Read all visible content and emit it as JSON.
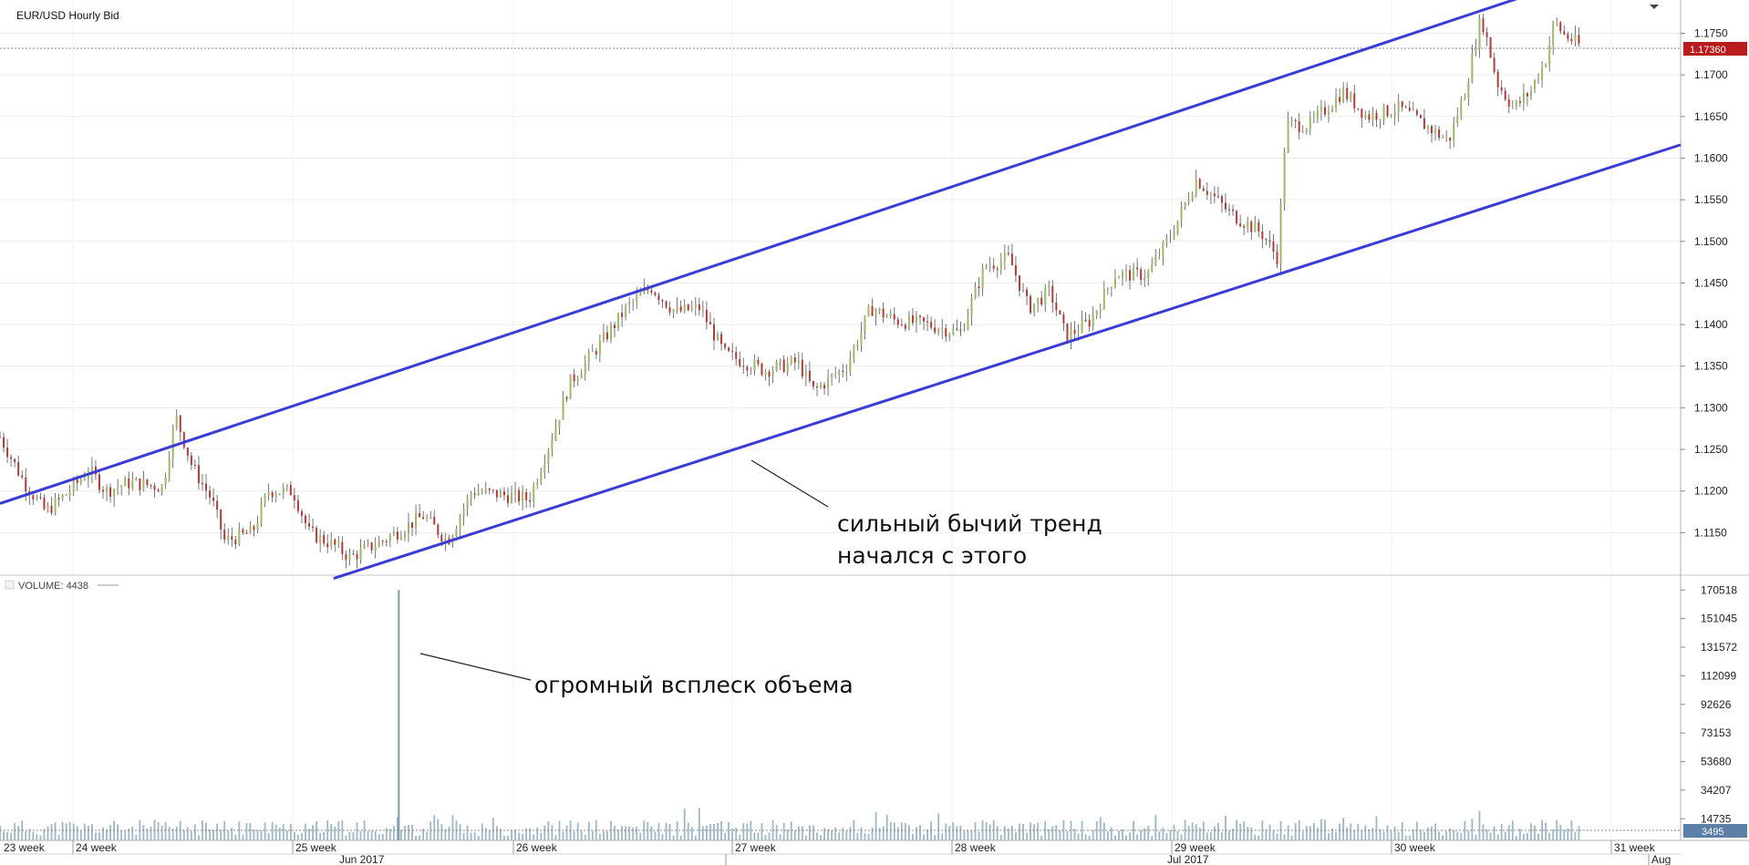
{
  "chart_data": [
    {
      "type": "candlestick",
      "title": "EUR/USD  Hourly Bid",
      "ylim": [
        1.11,
        1.179
      ],
      "y_ticks": [
        "1.1150",
        "1.1200",
        "1.1250",
        "1.1300",
        "1.1350",
        "1.1400",
        "1.1450",
        "1.1500",
        "1.1550",
        "1.1600",
        "1.1650",
        "1.1700",
        "1.1750"
      ],
      "last_price": "1.17360",
      "price_path": [
        {
          "t": 0,
          "p": 1.1265
        },
        {
          "t": 0.015,
          "p": 1.121
        },
        {
          "t": 0.028,
          "p": 1.1175
        },
        {
          "t": 0.04,
          "p": 1.1195
        },
        {
          "t": 0.055,
          "p": 1.1225
        },
        {
          "t": 0.065,
          "p": 1.12
        },
        {
          "t": 0.08,
          "p": 1.121
        },
        {
          "t": 0.1,
          "p": 1.1205
        },
        {
          "t": 0.108,
          "p": 1.129
        },
        {
          "t": 0.118,
          "p": 1.123
        },
        {
          "t": 0.13,
          "p": 1.119
        },
        {
          "t": 0.138,
          "p": 1.114
        },
        {
          "t": 0.155,
          "p": 1.115
        },
        {
          "t": 0.165,
          "p": 1.12
        },
        {
          "t": 0.18,
          "p": 1.12
        },
        {
          "t": 0.19,
          "p": 1.115
        },
        {
          "t": 0.205,
          "p": 1.1135
        },
        {
          "t": 0.215,
          "p": 1.112
        },
        {
          "t": 0.235,
          "p": 1.114
        },
        {
          "t": 0.26,
          "p": 1.117
        },
        {
          "t": 0.275,
          "p": 1.114
        },
        {
          "t": 0.29,
          "p": 1.12
        },
        {
          "t": 0.31,
          "p": 1.1195
        },
        {
          "t": 0.325,
          "p": 1.119
        },
        {
          "t": 0.34,
          "p": 1.127
        },
        {
          "t": 0.35,
          "p": 1.133
        },
        {
          "t": 0.37,
          "p": 1.138
        },
        {
          "t": 0.385,
          "p": 1.142
        },
        {
          "t": 0.4,
          "p": 1.1445
        },
        {
          "t": 0.415,
          "p": 1.1415
        },
        {
          "t": 0.43,
          "p": 1.142
        },
        {
          "t": 0.445,
          "p": 1.1365
        },
        {
          "t": 0.47,
          "p": 1.1345
        },
        {
          "t": 0.49,
          "p": 1.1355
        },
        {
          "t": 0.5,
          "p": 1.132
        },
        {
          "t": 0.52,
          "p": 1.135
        },
        {
          "t": 0.535,
          "p": 1.142
        },
        {
          "t": 0.55,
          "p": 1.1405
        },
        {
          "t": 0.57,
          "p": 1.14
        },
        {
          "t": 0.59,
          "p": 1.139
        },
        {
          "t": 0.605,
          "p": 1.147
        },
        {
          "t": 0.62,
          "p": 1.148
        },
        {
          "t": 0.632,
          "p": 1.142
        },
        {
          "t": 0.645,
          "p": 1.144
        },
        {
          "t": 0.655,
          "p": 1.1385
        },
        {
          "t": 0.67,
          "p": 1.1405
        },
        {
          "t": 0.685,
          "p": 1.146
        },
        {
          "t": 0.705,
          "p": 1.146
        },
        {
          "t": 0.72,
          "p": 1.151
        },
        {
          "t": 0.735,
          "p": 1.1575
        },
        {
          "t": 0.755,
          "p": 1.1535
        },
        {
          "t": 0.775,
          "p": 1.151
        },
        {
          "t": 0.785,
          "p": 1.148
        },
        {
          "t": 0.79,
          "p": 1.164
        },
        {
          "t": 0.805,
          "p": 1.164
        },
        {
          "t": 0.825,
          "p": 1.168
        },
        {
          "t": 0.84,
          "p": 1.165
        },
        {
          "t": 0.86,
          "p": 1.166
        },
        {
          "t": 0.875,
          "p": 1.164
        },
        {
          "t": 0.89,
          "p": 1.162
        },
        {
          "t": 0.9,
          "p": 1.168
        },
        {
          "t": 0.91,
          "p": 1.177
        },
        {
          "t": 0.92,
          "p": 1.169
        },
        {
          "t": 0.93,
          "p": 1.166
        },
        {
          "t": 0.94,
          "p": 1.168
        },
        {
          "t": 0.95,
          "p": 1.172
        },
        {
          "t": 0.955,
          "p": 1.1765
        },
        {
          "t": 0.96,
          "p": 1.175
        },
        {
          "t": 0.97,
          "p": 1.1736
        }
      ],
      "trend_channel": {
        "upper": [
          {
            "t": 0.0,
            "p": 1.1185
          },
          {
            "t": 0.945,
            "p": 1.18
          }
        ],
        "lower": [
          {
            "t": 0.205,
            "p": 1.1095
          },
          {
            "t": 1.0,
            "p": 1.1616
          }
        ]
      },
      "annotations": [
        {
          "id": "trend_start",
          "text_lines": [
            "сильный бычий тренд",
            "начался с этого"
          ]
        }
      ]
    },
    {
      "type": "bar",
      "label": "VOLUME: 4438",
      "ylim": [
        0,
        180000
      ],
      "y_ticks": [
        "170518",
        "151045",
        "131572",
        "112099",
        "92626",
        "73153",
        "53680",
        "34207",
        "14735"
      ],
      "last_value": "3495",
      "spike": {
        "t": 0.245,
        "value": 170518
      },
      "annotations": [
        {
          "id": "volume_spike",
          "text": "огромный всплеск объема"
        }
      ]
    }
  ],
  "x_axis": {
    "weeks": [
      "23 week",
      "24 week",
      "25 week",
      "26 week",
      "27 week",
      "28 week",
      "29 week",
      "30 week",
      "31 week"
    ],
    "months": [
      "Jun 2017",
      "Jul 2017",
      "Aug"
    ]
  },
  "colors": {
    "bull": "#9cb86a",
    "bear": "#b23a3a",
    "wick": "#555555",
    "channel": "#3b3bd6",
    "volume": "#9fb6c4",
    "price_badge": "#b81c1c",
    "volume_badge": "#5c7fa6",
    "grid": "#ececec"
  }
}
